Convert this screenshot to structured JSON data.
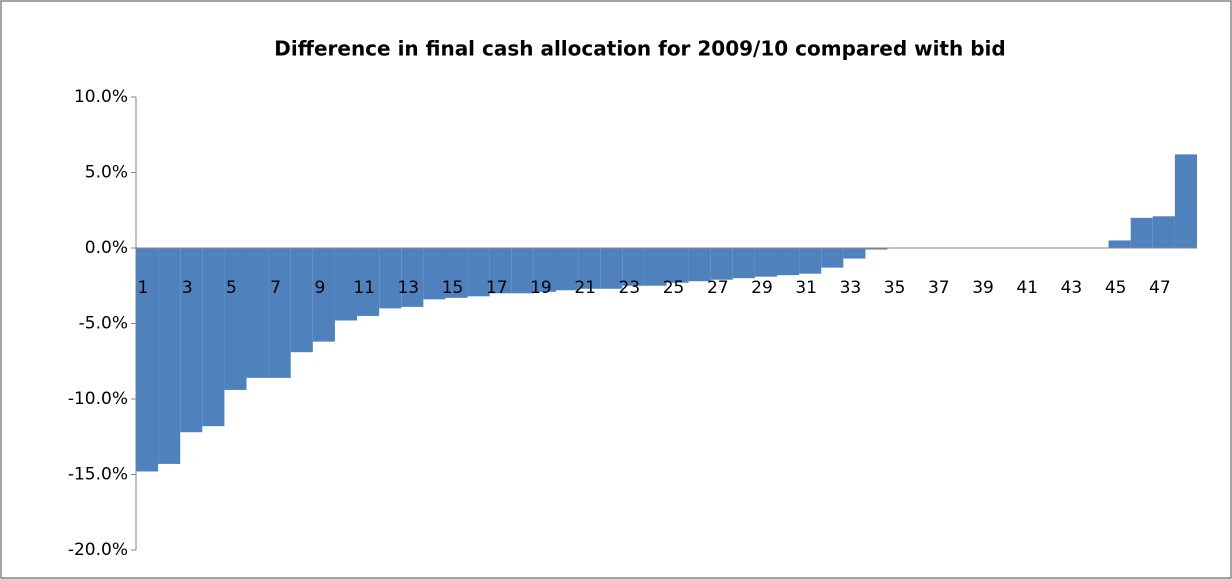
{
  "chart_data": {
    "type": "bar",
    "title": "Difference in final cash allocation for 2009/10 compared with bid",
    "categories": [
      "1",
      null,
      "3",
      null,
      "5",
      null,
      "7",
      null,
      "9",
      null,
      "11",
      null,
      "13",
      null,
      "15",
      null,
      "17",
      null,
      "19",
      null,
      "21",
      null,
      "23",
      null,
      "25",
      null,
      "27",
      null,
      "29",
      null,
      "31",
      null,
      "33",
      null,
      "35",
      null,
      "37",
      null,
      "39",
      null,
      "41",
      null,
      "43",
      null,
      "45",
      null,
      "47",
      null
    ],
    "values": [
      -14.8,
      -14.3,
      -12.2,
      -11.8,
      -9.4,
      -8.6,
      -8.6,
      -6.9,
      -6.2,
      -4.8,
      -4.5,
      -4.0,
      -3.9,
      -3.4,
      -3.3,
      -3.2,
      -3.0,
      -3.0,
      -2.9,
      -2.8,
      -2.7,
      -2.7,
      -2.5,
      -2.5,
      -2.3,
      -2.2,
      -2.1,
      -2.0,
      -1.9,
      -1.8,
      -1.7,
      -1.3,
      -0.7,
      -0.1,
      0,
      0,
      0,
      0,
      0,
      0,
      0,
      0,
      0,
      0,
      0.5,
      2.0,
      2.1,
      6.2
    ],
    "color": "#4f81bd",
    "ylim": [
      -20,
      10
    ],
    "yticks": [
      {
        "value": -20,
        "label": "-20.0%"
      },
      {
        "value": -15,
        "label": "-15.0%"
      },
      {
        "value": -10,
        "label": "-10.0%"
      },
      {
        "value": -5,
        "label": "-5.0%"
      },
      {
        "value": 0,
        "label": "0.0%"
      },
      {
        "value": 5,
        "label": "5.0%"
      },
      {
        "value": 10,
        "label": "10.0%"
      }
    ],
    "grid": false
  }
}
